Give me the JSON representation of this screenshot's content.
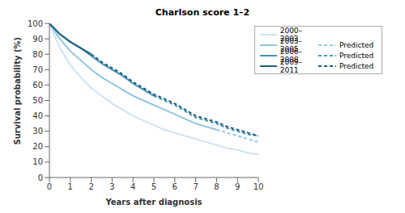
{
  "chart_data": {
    "type": "line",
    "title": "Charlson score 1–2",
    "x_label": "Years after diagnosis",
    "y_label": "Survival probability (%)",
    "x": [
      0,
      0.5,
      1,
      1.5,
      2,
      2.5,
      3,
      3.5,
      4,
      4.5,
      5,
      5.5,
      6,
      6.5,
      7,
      7.5,
      8,
      8.5,
      9,
      9.5,
      10
    ],
    "xlim": [
      0,
      10
    ],
    "xticks": [
      0,
      1,
      2,
      3,
      4,
      5,
      6,
      7,
      8,
      9,
      10
    ],
    "ylim": [
      0,
      100
    ],
    "yticks": [
      0,
      10,
      20,
      30,
      40,
      50,
      60,
      70,
      80,
      90,
      100
    ],
    "grid": false,
    "legend": "upper right",
    "series": [
      {
        "name": "2000–2002",
        "color": "#cbe5f0",
        "line_style": "solid",
        "values": [
          100,
          84,
          73,
          65,
          58,
          53,
          48,
          44,
          40,
          37,
          34,
          31,
          29,
          27,
          25,
          23,
          21,
          19,
          18,
          16,
          15
        ]
      },
      {
        "name": "2003–2005",
        "color": "#8fc7de",
        "line_style": "solid",
        "values": [
          100,
          90,
          82,
          76,
          70,
          65,
          61,
          57,
          53,
          50,
          47,
          44,
          41,
          38,
          35,
          33,
          31,
          null,
          null,
          null,
          null
        ]
      },
      {
        "name": "Predicted",
        "color": "#8fc7de",
        "line_style": "dashed",
        "values": [
          null,
          null,
          null,
          null,
          null,
          null,
          null,
          null,
          null,
          null,
          null,
          null,
          null,
          null,
          null,
          null,
          31,
          29,
          27,
          25,
          23
        ]
      },
      {
        "name": "2006–2008",
        "color": "#4593b8",
        "line_style": "solid",
        "values": [
          100,
          93,
          88,
          84,
          79,
          74,
          70,
          66,
          61,
          57,
          53,
          null,
          null,
          null,
          null,
          null,
          null,
          null,
          null,
          null,
          null
        ]
      },
      {
        "name": "Predicted",
        "color": "#4593b8",
        "line_style": "dashed",
        "values": [
          null,
          null,
          null,
          null,
          null,
          null,
          null,
          null,
          null,
          null,
          53,
          50,
          47,
          43,
          39,
          37,
          35,
          32,
          30,
          28,
          27
        ]
      },
      {
        "name": "2009–2011",
        "color": "#1d5f7e",
        "line_style": "solid",
        "values": [
          100,
          93,
          88,
          84,
          80,
          null,
          null,
          null,
          null,
          null,
          null,
          null,
          null,
          null,
          null,
          null,
          null,
          null,
          null,
          null,
          null
        ]
      },
      {
        "name": "Predicted",
        "color": "#1d5f7e",
        "line_style": "dashed",
        "values": [
          null,
          null,
          null,
          null,
          80,
          75,
          71,
          67,
          62,
          58,
          54,
          51,
          48,
          44,
          40,
          38,
          36,
          33,
          31,
          29,
          27
        ]
      }
    ]
  }
}
